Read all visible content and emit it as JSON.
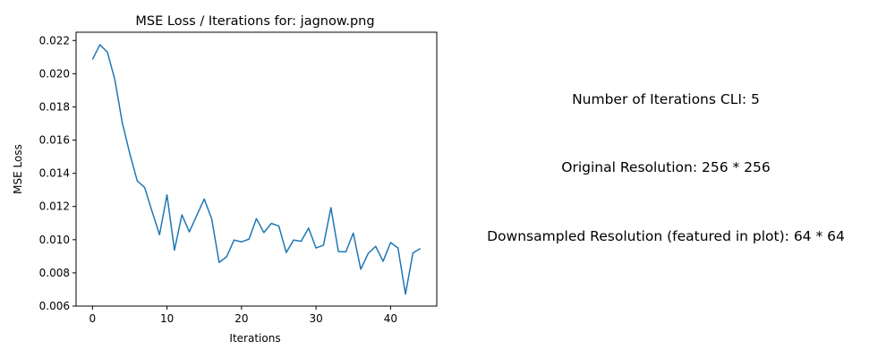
{
  "chart_data": {
    "type": "line",
    "title": "MSE Loss / Iterations for: jagnow.png",
    "xlabel": "Iterations",
    "ylabel": "MSE Loss",
    "xlim": [
      -2.2,
      46.2
    ],
    "ylim": [
      0.006,
      0.0225
    ],
    "xticks": [
      0,
      10,
      20,
      30,
      40
    ],
    "xtick_labels": [
      "0",
      "10",
      "20",
      "30",
      "40"
    ],
    "yticks": [
      0.006,
      0.008,
      0.01,
      0.012,
      0.014,
      0.016,
      0.018,
      0.02,
      0.022
    ],
    "ytick_labels": [
      "0.006",
      "0.008",
      "0.010",
      "0.012",
      "0.014",
      "0.016",
      "0.018",
      "0.020",
      "0.022"
    ],
    "grid": false,
    "series": [
      {
        "color": "#1f77b4",
        "x": [
          0,
          1,
          2,
          3,
          4,
          5,
          6,
          7,
          8,
          9,
          10,
          11,
          12,
          13,
          14,
          15,
          16,
          17,
          18,
          19,
          20,
          21,
          22,
          23,
          24,
          25,
          26,
          27,
          28,
          29,
          30,
          31,
          32,
          33,
          34,
          35,
          36,
          37,
          38,
          39,
          40,
          41,
          42,
          43,
          44
        ],
        "values": [
          0.02085,
          0.02175,
          0.0213,
          0.01965,
          0.01705,
          0.0152,
          0.01355,
          0.01315,
          0.0117,
          0.0103,
          0.0127,
          0.00937,
          0.0115,
          0.01047,
          0.01147,
          0.01245,
          0.01125,
          0.00863,
          0.00897,
          0.00998,
          0.00987,
          0.01003,
          0.01127,
          0.01043,
          0.01098,
          0.01083,
          0.00923,
          0.00998,
          0.0099,
          0.0107,
          0.0095,
          0.00967,
          0.01193,
          0.00928,
          0.00927,
          0.0104,
          0.00822,
          0.00917,
          0.0096,
          0.0087,
          0.00983,
          0.0095,
          0.00672,
          0.0092,
          0.00947
        ]
      }
    ]
  },
  "info": {
    "iterations_cli": "Number of Iterations CLI: 5",
    "original_resolution": "Original Resolution: 256 * 256",
    "downsampled_resolution": "Downsampled Resolution (featured in plot): 64 * 64"
  }
}
